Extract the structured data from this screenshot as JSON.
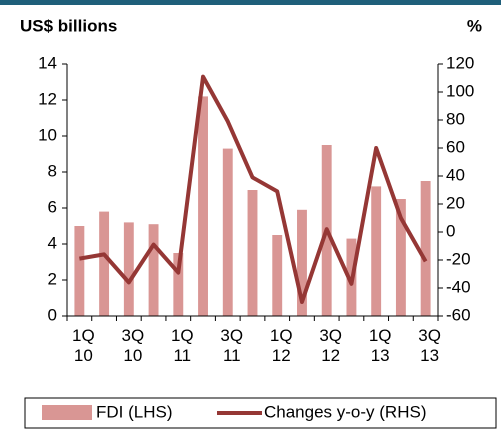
{
  "chart_data": {
    "type": "bar",
    "y_axis_label": "US$ billions",
    "y2_axis_label": "%",
    "categories": [
      "1Q\n10",
      null,
      "3Q\n10",
      null,
      "1Q\n11",
      null,
      "3Q\n11",
      null,
      "1Q\n12",
      null,
      "3Q\n12",
      null,
      "1Q\n13",
      null,
      "3Q\n13"
    ],
    "series": [
      {
        "name": "FDI (LHS)",
        "type": "bar",
        "color": "#d99694",
        "values": [
          5.0,
          5.8,
          5.2,
          5.1,
          3.5,
          12.2,
          9.3,
          7.0,
          4.5,
          5.9,
          9.5,
          4.3,
          7.2,
          6.5,
          7.5
        ]
      },
      {
        "name": "Changes y-o-y (RHS)",
        "type": "line",
        "axis": "y2",
        "color": "#953735",
        "values": [
          -19,
          -16,
          -36,
          -9,
          -29,
          111,
          79,
          39,
          29,
          -50,
          2,
          -37,
          60,
          10,
          -21
        ]
      }
    ],
    "ylim": [
      0,
      14
    ],
    "yticks": [
      0,
      2,
      4,
      6,
      8,
      10,
      12,
      14
    ],
    "y2lim": [
      -60,
      120
    ],
    "y2ticks": [
      -60,
      -40,
      -20,
      0,
      20,
      40,
      60,
      80,
      100,
      120
    ],
    "legend": "bottom"
  }
}
